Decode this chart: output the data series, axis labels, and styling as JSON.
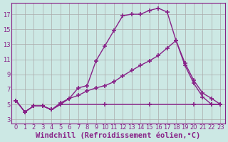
{
  "xlabel": "Windchill (Refroidissement éolien,°C)",
  "bg_color": "#cce8e4",
  "grid_color": "#aaaaaa",
  "line_color": "#882288",
  "xlim": [
    -0.5,
    23.5
  ],
  "ylim": [
    2.5,
    18.5
  ],
  "xticks": [
    0,
    1,
    2,
    3,
    4,
    5,
    6,
    7,
    8,
    9,
    10,
    11,
    12,
    13,
    14,
    15,
    16,
    17,
    18,
    19,
    20,
    21,
    22,
    23
  ],
  "yticks": [
    3,
    5,
    7,
    9,
    11,
    13,
    15,
    17
  ],
  "curve1_x": [
    0,
    1,
    2,
    3,
    4,
    5,
    6,
    7,
    8,
    9,
    10,
    11,
    12,
    13,
    14,
    15,
    16,
    17,
    18,
    19,
    20,
    21,
    22,
    23
  ],
  "curve1_y": [
    5.5,
    4.0,
    4.8,
    4.8,
    4.3,
    5.0,
    5.8,
    7.2,
    7.5,
    10.8,
    12.8,
    14.8,
    16.8,
    17.0,
    17.0,
    17.5,
    17.8,
    17.3,
    13.5,
    10.2,
    7.8,
    6.0,
    5.0,
    5.0
  ],
  "curve2_x": [
    0,
    1,
    2,
    3,
    4,
    5,
    6,
    7,
    8,
    9,
    10,
    11,
    12,
    13,
    14,
    15,
    16,
    17,
    18,
    19,
    20,
    21,
    22,
    23
  ],
  "curve2_y": [
    5.5,
    4.0,
    4.8,
    4.8,
    4.3,
    5.2,
    5.8,
    6.2,
    6.8,
    7.2,
    7.5,
    8.0,
    8.8,
    9.5,
    10.2,
    10.8,
    11.5,
    12.5,
    13.5,
    10.5,
    8.2,
    6.5,
    5.8,
    5.0
  ],
  "curve3_x": [
    0,
    1,
    2,
    3,
    4,
    5,
    10,
    15,
    20,
    22,
    23
  ],
  "curve3_y": [
    5.5,
    4.0,
    4.8,
    4.8,
    4.3,
    5.0,
    5.0,
    5.0,
    5.0,
    5.0,
    5.0
  ],
  "marker": "+",
  "markersize": 4,
  "markeredgewidth": 1.2,
  "linewidth": 1.0,
  "tick_fontsize": 6,
  "xlabel_fontsize": 7.5
}
